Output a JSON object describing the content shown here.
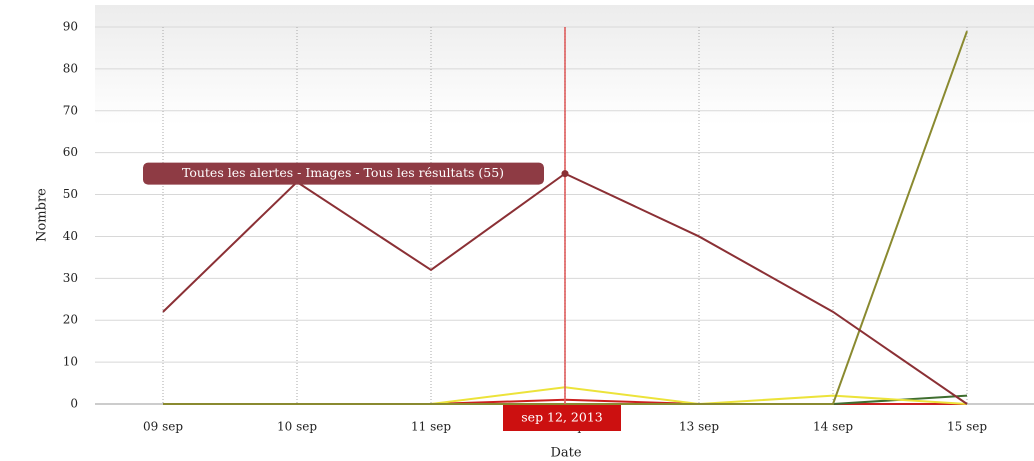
{
  "chart_data": {
    "type": "line",
    "x_label": "Date",
    "y_label": "Nombre",
    "categories": [
      "09 sep",
      "10 sep",
      "11 sep",
      "12 sep",
      "13 sep",
      "14 sep",
      "15 sep"
    ],
    "series": [
      {
        "name": "Toutes les alertes - Images - Tous les résultats",
        "color": "#8b3035",
        "values": [
          22,
          53,
          32,
          55,
          40,
          22,
          0
        ]
      },
      {
        "color": "#8a8a30",
        "values": [
          0,
          0,
          0,
          0,
          0,
          0,
          89
        ]
      },
      {
        "color": "#ece33a",
        "values": [
          0,
          0,
          0,
          4,
          0,
          2,
          0
        ]
      },
      {
        "color": "#3f6e2f",
        "values": [
          0,
          0,
          0,
          0,
          0,
          0,
          2
        ]
      },
      {
        "color": "#cc2020",
        "values": [
          0,
          0,
          0,
          1,
          0,
          0,
          0
        ]
      }
    ],
    "ylim": [
      0,
      90
    ],
    "yticks": [
      0,
      10,
      20,
      30,
      40,
      50,
      60,
      70,
      80,
      90
    ],
    "grid": true,
    "tooltip": "Toutes les alertes - Images - Tous les résultats (55)",
    "crosshair_label": "sep 12, 2013"
  }
}
